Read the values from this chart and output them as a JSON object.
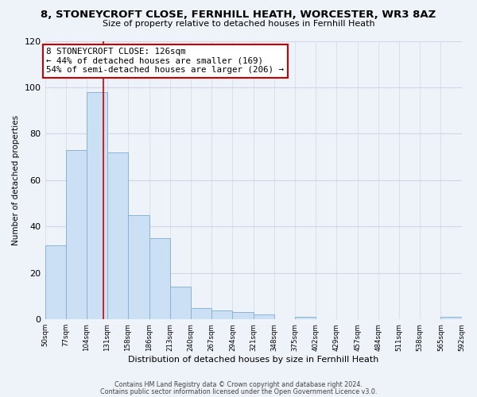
{
  "title": "8, STONEYCROFT CLOSE, FERNHILL HEATH, WORCESTER, WR3 8AZ",
  "subtitle": "Size of property relative to detached houses in Fernhill Heath",
  "xlabel": "Distribution of detached houses by size in Fernhill Heath",
  "ylabel": "Number of detached properties",
  "bar_edges": [
    50,
    77,
    104,
    131,
    158,
    186,
    213,
    240,
    267,
    294,
    321,
    348,
    375,
    402,
    429,
    457,
    484,
    511,
    538,
    565,
    592
  ],
  "bar_heights": [
    32,
    73,
    98,
    72,
    45,
    35,
    14,
    5,
    4,
    3,
    2,
    0,
    1,
    0,
    0,
    0,
    0,
    0,
    0,
    1
  ],
  "bar_color": "#cce0f5",
  "bar_edgecolor": "#8ab4d4",
  "property_line_x": 126,
  "property_line_color": "#cc0000",
  "annotation_text": "8 STONEYCROFT CLOSE: 126sqm\n← 44% of detached houses are smaller (169)\n54% of semi-detached houses are larger (206) →",
  "annotation_box_edgecolor": "#cc0000",
  "annotation_box_facecolor": "#ffffff",
  "ylim": [
    0,
    120
  ],
  "yticks": [
    0,
    20,
    40,
    60,
    80,
    100,
    120
  ],
  "tick_labels": [
    "50sqm",
    "77sqm",
    "104sqm",
    "131sqm",
    "158sqm",
    "186sqm",
    "213sqm",
    "240sqm",
    "267sqm",
    "294sqm",
    "321sqm",
    "348sqm",
    "375sqm",
    "402sqm",
    "429sqm",
    "457sqm",
    "484sqm",
    "511sqm",
    "538sqm",
    "565sqm",
    "592sqm"
  ],
  "footer_line1": "Contains HM Land Registry data © Crown copyright and database right 2024.",
  "footer_line2": "Contains public sector information licensed under the Open Government Licence v3.0.",
  "grid_color": "#d0d8e8",
  "background_color": "#eef2f9"
}
